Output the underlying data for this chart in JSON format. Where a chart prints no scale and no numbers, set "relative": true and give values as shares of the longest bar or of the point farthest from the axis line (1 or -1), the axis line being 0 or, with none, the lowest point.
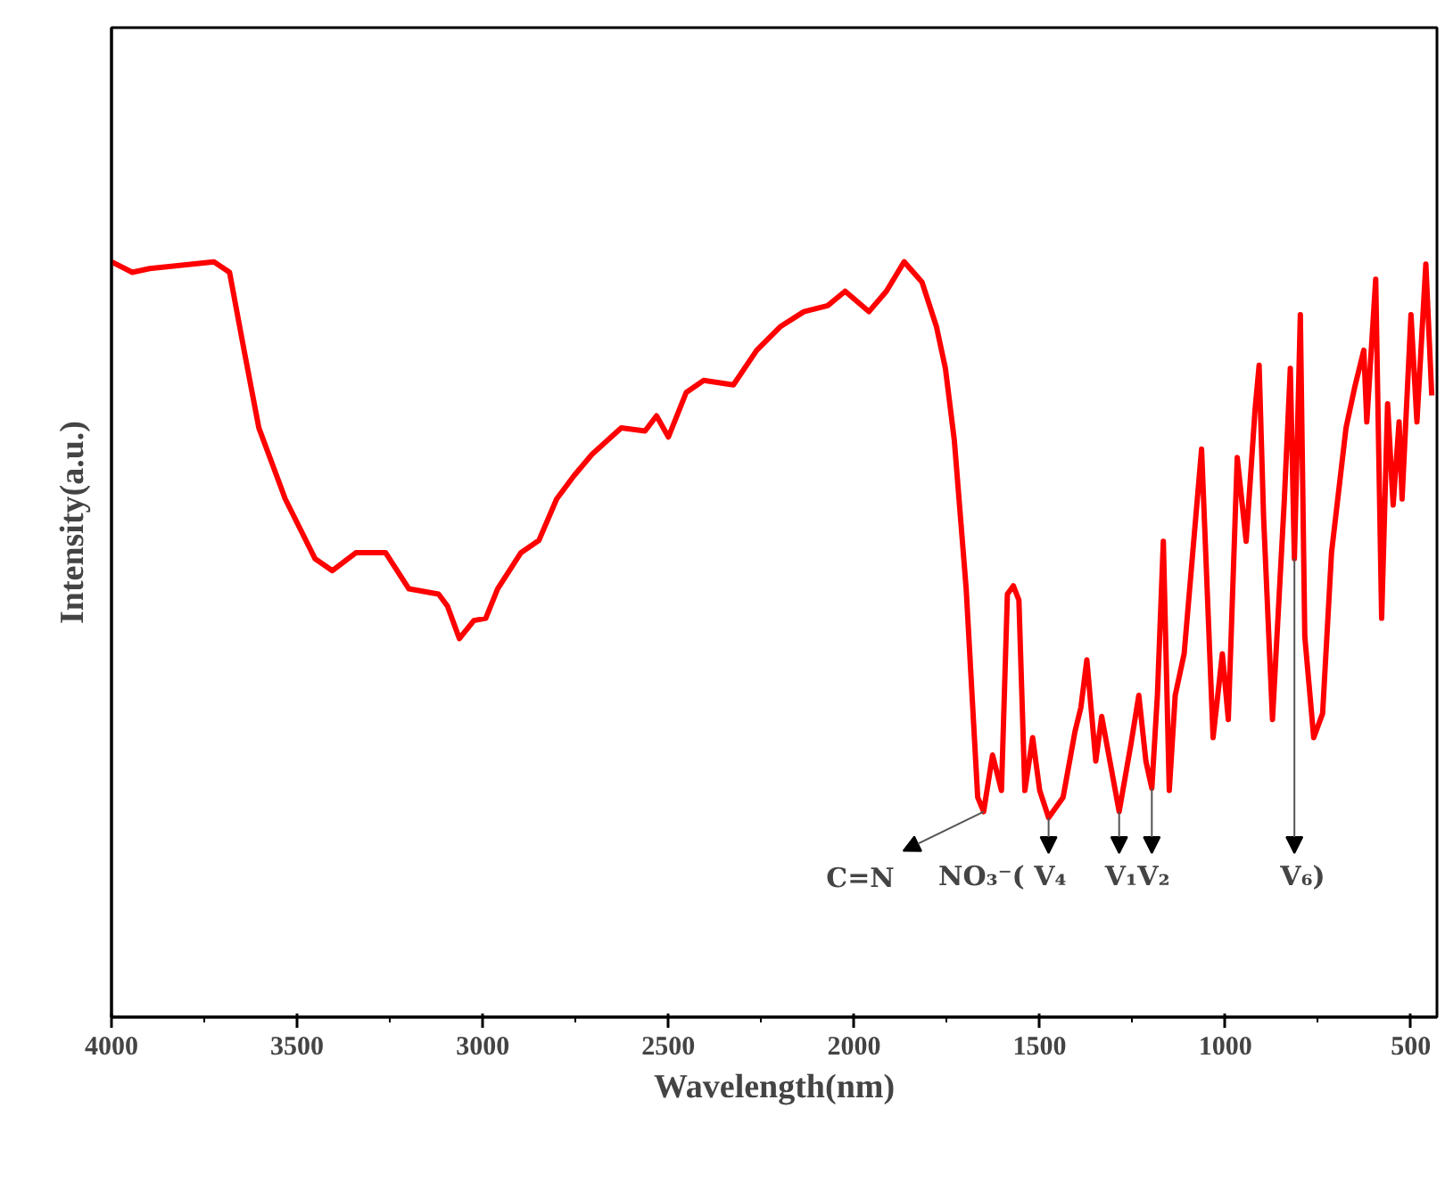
{
  "chart_data": {
    "type": "line",
    "relative": true,
    "xlabel": "Wavelength(nm)",
    "ylabel": "Intensity(a.u.)",
    "xlim": [
      4000,
      430
    ],
    "xticks": [
      4000,
      {
        "value": 3750,
        "label": null
      },
      3500,
      {
        "value": 3250,
        "label": null
      },
      3000,
      {
        "value": 2750,
        "label": null
      },
      2500,
      {
        "value": 2250,
        "label": null
      },
      2000,
      {
        "value": 1750,
        "label": null
      },
      1500,
      {
        "value": 1250,
        "label": null
      },
      1000,
      {
        "value": 750,
        "label": null
      },
      500
    ],
    "x": [
      4000,
      3944,
      3897,
      3724,
      3682,
      3643,
      3603,
      3532,
      3452,
      3405,
      3341,
      3262,
      3199,
      3119,
      3095,
      3063,
      3024,
      2992,
      2960,
      2897,
      2849,
      2801,
      2754,
      2706,
      2627,
      2563,
      2532,
      2500,
      2452,
      2405,
      2325,
      2262,
      2199,
      2135,
      2071,
      2024,
      1960,
      1913,
      1865,
      1817,
      1778,
      1754,
      1730,
      1698,
      1667,
      1651,
      1627,
      1603,
      1587,
      1571,
      1556,
      1540,
      1519,
      1500,
      1476,
      1437,
      1405,
      1389,
      1373,
      1349,
      1333,
      1286,
      1254,
      1233,
      1214,
      1198,
      1183,
      1167,
      1151,
      1135,
      1111,
      1064,
      1033,
      1008,
      992,
      968,
      944,
      920,
      909,
      897,
      873,
      841,
      825,
      814,
      798,
      786,
      762,
      738,
      714,
      675,
      651,
      627,
      619,
      595,
      579,
      563,
      548,
      532,
      524,
      500,
      484,
      460,
      444
    ],
    "series": [
      {
        "color": "#ff0000",
        "values": [
          1.0,
          0.986,
          0.991,
          1.0,
          0.986,
          0.883,
          0.78,
          0.686,
          0.607,
          0.591,
          0.615,
          0.615,
          0.567,
          0.56,
          0.544,
          0.501,
          0.525,
          0.528,
          0.567,
          0.615,
          0.631,
          0.686,
          0.717,
          0.745,
          0.78,
          0.776,
          0.796,
          0.768,
          0.827,
          0.843,
          0.837,
          0.883,
          0.914,
          0.934,
          0.942,
          0.961,
          0.934,
          0.961,
          1.0,
          0.973,
          0.914,
          0.859,
          0.764,
          0.567,
          0.291,
          0.272,
          0.347,
          0.3,
          0.56,
          0.571,
          0.552,
          0.3,
          0.37,
          0.3,
          0.264,
          0.291,
          0.378,
          0.41,
          0.473,
          0.339,
          0.398,
          0.272,
          0.362,
          0.426,
          0.339,
          0.303,
          0.426,
          0.63,
          0.3,
          0.426,
          0.481,
          0.752,
          0.37,
          0.481,
          0.394,
          0.741,
          0.63,
          0.804,
          0.863,
          0.662,
          0.394,
          0.686,
          0.859,
          0.607,
          0.93,
          0.504,
          0.37,
          0.402,
          0.615,
          0.78,
          0.835,
          0.883,
          0.788,
          0.977,
          0.528,
          0.812,
          0.678,
          0.788,
          0.686,
          0.93,
          0.788,
          0.997,
          0.823
        ]
      }
    ],
    "annotations": [
      {
        "text": "C=N",
        "x": 1651,
        "y": 0.272
      },
      {
        "text": "NO₃⁻( V₄",
        "x": 1476,
        "y": 0.264
      },
      {
        "text": "V₁",
        "x": 1286,
        "y": 0.272
      },
      {
        "text": "V₂",
        "x": 1198,
        "y": 0.303
      },
      {
        "text": "V₆)",
        "x": 814,
        "y": 0.607
      }
    ],
    "grid": false,
    "marker": "none",
    "line_style": "solid"
  }
}
